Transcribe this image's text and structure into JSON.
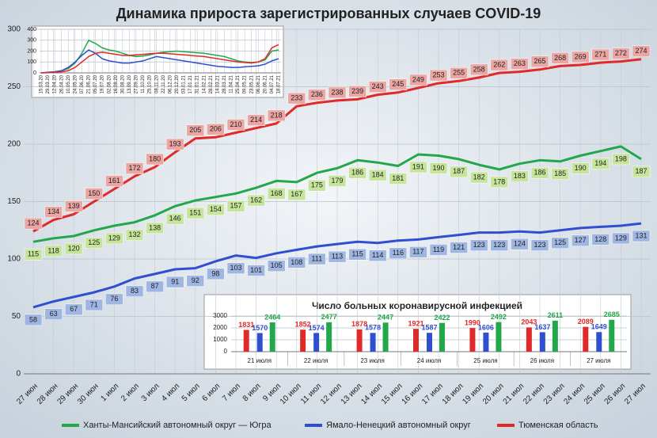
{
  "chart_data": [
    {
      "type": "line",
      "title": "Динамика прироста зарегистрированных случаев COVID-19",
      "categories": [
        "27 июн",
        "28 июн",
        "29 июн",
        "30 июн",
        "1 июл",
        "2 июл",
        "3 июл",
        "4 июл",
        "5 июл",
        "6 июл",
        "7 июл",
        "8 июл",
        "9 июл",
        "10 июл",
        "11 июл",
        "12 июл",
        "13 июл",
        "14 июл",
        "15 июл",
        "16 июл",
        "17 июл",
        "18 июл",
        "19 июл",
        "20 июл",
        "21 июл",
        "22 июл",
        "23 июл",
        "24 июл",
        "25 июл",
        "26 июл",
        "27 июл"
      ],
      "series": [
        {
          "name": "Ханты-Мансийский автономный округ — Югра",
          "color": "#22a84a",
          "values": [
            115,
            118,
            120,
            125,
            129,
            132,
            138,
            146,
            151,
            154,
            157,
            162,
            168,
            167,
            175,
            179,
            186,
            184,
            181,
            191,
            190,
            187,
            182,
            178,
            183,
            186,
            185,
            190,
            194,
            198,
            187
          ]
        },
        {
          "name": "Ямало-Ненецкий автономный округ",
          "color": "#2f4fd0",
          "values": [
            58,
            63,
            67,
            71,
            76,
            83,
            87,
            91,
            92,
            98,
            103,
            101,
            105,
            108,
            111,
            113,
            115,
            114,
            116,
            117,
            119,
            121,
            123,
            123,
            124,
            123,
            125,
            127,
            128,
            129,
            131
          ]
        },
        {
          "name": "Тюменская область",
          "color": "#e02a2a",
          "values": [
            124,
            134,
            139,
            150,
            161,
            172,
            180,
            193,
            205,
            206,
            210,
            214,
            218,
            233,
            236,
            238,
            239,
            243,
            245,
            249,
            253,
            255,
            258,
            262,
            263,
            265,
            268,
            269,
            271,
            272,
            274
          ]
        }
      ],
      "ylim": [
        0,
        300
      ],
      "yticks": [
        0,
        50,
        100,
        150,
        200,
        250,
        300
      ],
      "grid": true,
      "legend": "bottom"
    },
    {
      "type": "line",
      "categories": [
        "15.03.20",
        "29.03.20",
        "12.04.20",
        "26.04.20",
        "10.05.20",
        "24.05.20",
        "07.06.20",
        "21.06.20",
        "05.07.20",
        "19.07.20",
        "02.08.20",
        "16.08.20",
        "30.08.20",
        "13.09.20",
        "27.09.20",
        "11.10.20",
        "25.10.20",
        "08.11.20",
        "22.11.20",
        "06.12.20",
        "20.12.20",
        "03.01.21",
        "17.01.21",
        "31.01.21",
        "14.02.21",
        "28.02.21",
        "14.03.21",
        "28.03.21",
        "11.04.21",
        "25.04.21",
        "09.05.21",
        "23.05.21",
        "06.06.21",
        "20.06.21",
        "04.07.21",
        "18.07.21"
      ],
      "series": [
        {
          "color": "#22a84a",
          "values": [
            0,
            5,
            10,
            20,
            40,
            90,
            180,
            300,
            270,
            230,
            210,
            200,
            180,
            160,
            150,
            155,
            165,
            180,
            190,
            195,
            200,
            195,
            190,
            185,
            180,
            170,
            160,
            150,
            130,
            110,
            100,
            95,
            100,
            120,
            200,
            210
          ]
        },
        {
          "color": "#2f4fd0",
          "values": [
            0,
            5,
            10,
            20,
            50,
            100,
            160,
            210,
            180,
            130,
            110,
            100,
            90,
            90,
            100,
            110,
            130,
            150,
            140,
            130,
            120,
            110,
            100,
            90,
            80,
            70,
            60,
            55,
            50,
            50,
            55,
            60,
            65,
            80,
            110,
            130
          ]
        },
        {
          "color": "#e02a2a",
          "values": [
            0,
            2,
            5,
            10,
            20,
            50,
            100,
            150,
            180,
            190,
            180,
            170,
            160,
            160,
            165,
            170,
            175,
            180,
            180,
            175,
            170,
            165,
            160,
            155,
            150,
            140,
            130,
            120,
            110,
            100,
            95,
            90,
            100,
            130,
            230,
            260
          ]
        }
      ],
      "ylim": [
        0,
        400
      ],
      "yticks": [
        0,
        100,
        200,
        300,
        400
      ],
      "grid": true
    },
    {
      "type": "bar",
      "title": "Число больных коронавирусной  инфекцией",
      "categories": [
        "21 июля",
        "22 июля",
        "23 июля",
        "24 июля",
        "25 июля",
        "26 июля",
        "27 июля"
      ],
      "series": [
        {
          "color": "#e02a2a",
          "values": [
            1831,
            1852,
            1878,
            1921,
            1990,
            2043,
            2089
          ]
        },
        {
          "color": "#2f4fd0",
          "values": [
            1570,
            1574,
            1578,
            1587,
            1606,
            1637,
            1649
          ]
        },
        {
          "color": "#22a84a",
          "values": [
            2464,
            2477,
            2447,
            2422,
            2492,
            2611,
            2685
          ]
        }
      ],
      "ylim": [
        0,
        3000
      ],
      "yticks": [
        0,
        1000,
        2000,
        3000
      ],
      "grid": true
    }
  ]
}
